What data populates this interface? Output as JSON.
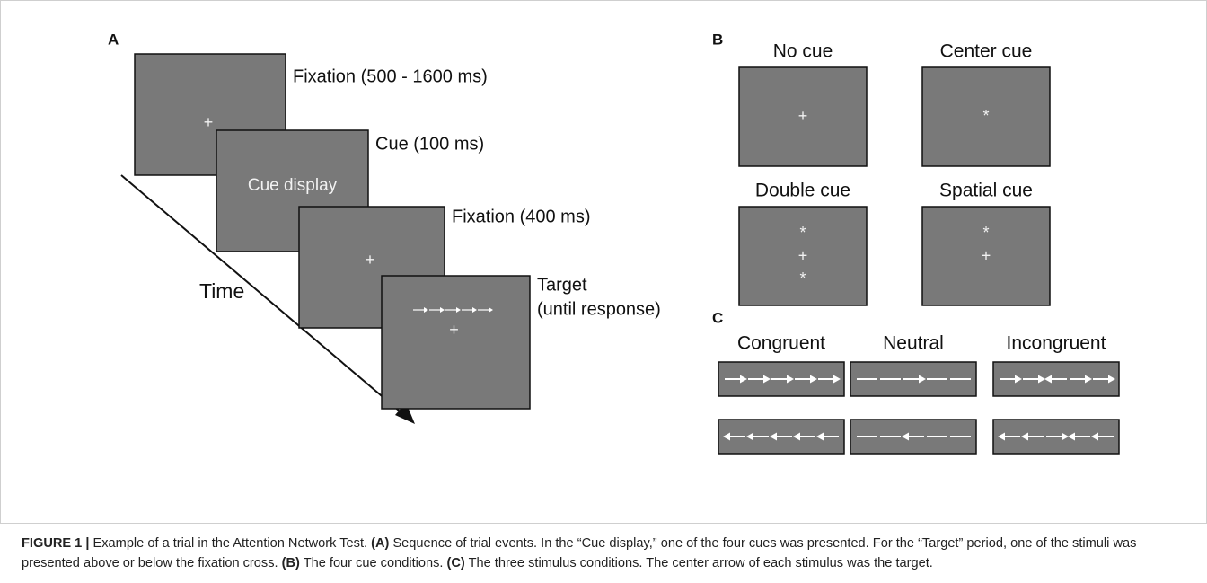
{
  "panel_a": {
    "label": "A",
    "steps": [
      {
        "name": "Fixation (500 - 1600 ms)",
        "content": "+"
      },
      {
        "name": "Cue (100 ms)",
        "content": "Cue display"
      },
      {
        "name": "Fixation (400 ms)",
        "content": "+"
      },
      {
        "name": "Target",
        "name2": "(until response)",
        "content": "+"
      }
    ],
    "time": "Time"
  },
  "panel_b": {
    "label": "B",
    "cues": [
      {
        "name": "No cue",
        "symbols": [
          "+"
        ]
      },
      {
        "name": "Center cue",
        "symbols": [
          "*"
        ]
      },
      {
        "name": "Double cue",
        "symbols": [
          "*",
          "+",
          "*"
        ]
      },
      {
        "name": "Spatial cue",
        "symbols": [
          "*",
          "+"
        ]
      }
    ]
  },
  "panel_c": {
    "label": "C",
    "conditions": [
      "Congruent",
      "Neutral",
      "Incongruent"
    ]
  },
  "caption": {
    "figure": "FIGURE 1 |",
    "intro": "Example of a trial in the Attention Network Test.",
    "a_label": "(A)",
    "a_text": "Sequence of trial events. In the “Cue display,” one of the four cues was presented. For the “Target” period, one of the stimuli was presented above or below the fixation cross.",
    "b_label": "(B)",
    "b_text": "The four cue conditions.",
    "c_label": "(C)",
    "c_text": "The three stimulus conditions. The center arrow of each stimulus was the target."
  }
}
